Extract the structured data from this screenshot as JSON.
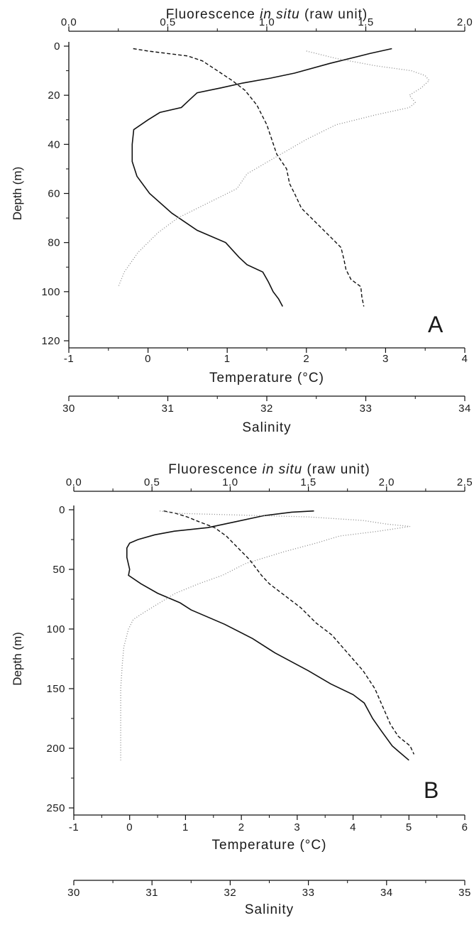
{
  "chart_data": [
    {
      "type": "line",
      "panel_label": "A",
      "top_axis": {
        "title_pre": "Fluorescence ",
        "title_ital": "in situ",
        "title_post": " (raw unit)",
        "range": [
          0.0,
          2.0
        ],
        "ticks": [
          "0.0",
          "0.5",
          "1.0",
          "1.5",
          "2.0"
        ]
      },
      "temperature_axis": {
        "title": "Temperature (°C)",
        "range": [
          -1,
          4
        ],
        "ticks": [
          "-1",
          "0",
          "1",
          "2",
          "3",
          "4"
        ]
      },
      "salinity_axis": {
        "title": "Salinity",
        "range": [
          30,
          34
        ],
        "ticks": [
          "30",
          "31",
          "32",
          "33",
          "34"
        ]
      },
      "depth_axis": {
        "title": "Depth (m)",
        "range": [
          0,
          120
        ],
        "reversed": true,
        "ticks": [
          "0",
          "20",
          "40",
          "60",
          "80",
          "100",
          "120"
        ]
      },
      "series": [
        {
          "style": "solid",
          "axis": "temperature",
          "points": [
            [
              3.08,
              1
            ],
            [
              2.8,
              3
            ],
            [
              2.3,
              7
            ],
            [
              1.85,
              11
            ],
            [
              1.55,
              13
            ],
            [
              1.2,
              15
            ],
            [
              0.92,
              17
            ],
            [
              0.62,
              19
            ],
            [
              0.52,
              22
            ],
            [
              0.42,
              25
            ],
            [
              0.15,
              27
            ],
            [
              0.0,
              30
            ],
            [
              -0.18,
              34
            ],
            [
              -0.2,
              40
            ],
            [
              -0.2,
              47
            ],
            [
              -0.14,
              53
            ],
            [
              0.02,
              60
            ],
            [
              0.3,
              68
            ],
            [
              0.62,
              75
            ],
            [
              0.98,
              80
            ],
            [
              1.15,
              86
            ],
            [
              1.25,
              89
            ],
            [
              1.45,
              92
            ],
            [
              1.52,
              96
            ],
            [
              1.58,
              100
            ],
            [
              1.65,
              103
            ],
            [
              1.7,
              106
            ]
          ]
        },
        {
          "style": "dashed",
          "axis": "salinity",
          "points": [
            [
              30.65,
              1
            ],
            [
              30.8,
              2
            ],
            [
              31.0,
              3
            ],
            [
              31.2,
              4
            ],
            [
              31.35,
              6
            ],
            [
              31.5,
              10
            ],
            [
              31.65,
              14
            ],
            [
              31.78,
              18
            ],
            [
              31.9,
              24
            ],
            [
              32.0,
              32
            ],
            [
              32.05,
              38
            ],
            [
              32.1,
              44
            ],
            [
              32.2,
              50
            ],
            [
              32.23,
              56
            ],
            [
              32.28,
              60
            ],
            [
              32.35,
              66
            ],
            [
              32.5,
              72
            ],
            [
              32.6,
              76
            ],
            [
              32.75,
              82
            ],
            [
              32.78,
              87
            ],
            [
              32.8,
              91
            ],
            [
              32.85,
              95
            ],
            [
              32.95,
              98
            ],
            [
              32.96,
              102
            ],
            [
              32.98,
              106
            ]
          ]
        },
        {
          "style": "dotted",
          "axis": "fluorescence",
          "points": [
            [
              1.2,
              2
            ],
            [
              1.35,
              5
            ],
            [
              1.55,
              8
            ],
            [
              1.73,
              10
            ],
            [
              1.8,
              12
            ],
            [
              1.82,
              14
            ],
            [
              1.78,
              17
            ],
            [
              1.72,
              20
            ],
            [
              1.75,
              23
            ],
            [
              1.72,
              25
            ],
            [
              1.55,
              28
            ],
            [
              1.35,
              32
            ],
            [
              1.2,
              38
            ],
            [
              1.05,
              45
            ],
            [
              0.9,
              52
            ],
            [
              0.85,
              58
            ],
            [
              0.7,
              64
            ],
            [
              0.55,
              70
            ],
            [
              0.45,
              76
            ],
            [
              0.35,
              84
            ],
            [
              0.28,
              92
            ],
            [
              0.25,
              98
            ]
          ]
        }
      ]
    },
    {
      "type": "line",
      "panel_label": "B",
      "top_axis": {
        "title_pre": "Fluorescence ",
        "title_ital": "in situ",
        "title_post": " (raw unit)",
        "range": [
          0.0,
          2.5
        ],
        "ticks": [
          "0.0",
          "0.5",
          "1.0",
          "1.5",
          "2.0",
          "2.5"
        ]
      },
      "temperature_axis": {
        "title": "Temperature (°C)",
        "range": [
          -1,
          6
        ],
        "ticks": [
          "-1",
          "0",
          "1",
          "2",
          "3",
          "4",
          "5",
          "6"
        ]
      },
      "salinity_axis": {
        "title": "Salinity",
        "range": [
          30,
          35
        ],
        "ticks": [
          "30",
          "31",
          "32",
          "33",
          "34",
          "35"
        ]
      },
      "depth_axis": {
        "title": "Depth (m)",
        "range": [
          0,
          250
        ],
        "reversed": true,
        "ticks": [
          "0",
          "50",
          "100",
          "150",
          "200",
          "250"
        ]
      },
      "series": [
        {
          "style": "solid",
          "axis": "temperature",
          "points": [
            [
              3.3,
              1
            ],
            [
              2.9,
              2
            ],
            [
              2.4,
              5
            ],
            [
              1.9,
              10
            ],
            [
              1.4,
              15
            ],
            [
              0.8,
              18
            ],
            [
              0.45,
              21
            ],
            [
              0.15,
              25
            ],
            [
              0.0,
              28
            ],
            [
              -0.05,
              32
            ],
            [
              -0.05,
              40
            ],
            [
              0.0,
              50
            ],
            [
              -0.02,
              55
            ],
            [
              0.2,
              62
            ],
            [
              0.5,
              70
            ],
            [
              0.9,
              78
            ],
            [
              1.1,
              84
            ],
            [
              1.7,
              96
            ],
            [
              2.2,
              108
            ],
            [
              2.6,
              120
            ],
            [
              3.2,
              135
            ],
            [
              3.6,
              146
            ],
            [
              4.0,
              155
            ],
            [
              4.2,
              162
            ],
            [
              4.35,
              175
            ],
            [
              4.5,
              185
            ],
            [
              4.7,
              198
            ],
            [
              4.8,
              202
            ],
            [
              5.0,
              210
            ]
          ]
        },
        {
          "style": "dashed",
          "axis": "salinity",
          "points": [
            [
              31.15,
              1
            ],
            [
              31.3,
              3
            ],
            [
              31.45,
              6
            ],
            [
              31.6,
              10
            ],
            [
              31.8,
              15
            ],
            [
              31.95,
              22
            ],
            [
              32.1,
              32
            ],
            [
              32.25,
              42
            ],
            [
              32.4,
              55
            ],
            [
              32.5,
              62
            ],
            [
              32.7,
              72
            ],
            [
              32.9,
              82
            ],
            [
              33.1,
              95
            ],
            [
              33.3,
              105
            ],
            [
              33.5,
              120
            ],
            [
              33.7,
              135
            ],
            [
              33.85,
              150
            ],
            [
              33.95,
              165
            ],
            [
              34.05,
              180
            ],
            [
              34.15,
              190
            ],
            [
              34.3,
              198
            ],
            [
              34.35,
              205
            ]
          ]
        },
        {
          "style": "dotted",
          "axis": "fluorescence",
          "points": [
            [
              0.55,
              1
            ],
            [
              0.65,
              3
            ],
            [
              1.5,
              6
            ],
            [
              1.85,
              9
            ],
            [
              2.0,
              12
            ],
            [
              2.15,
              14
            ],
            [
              1.95,
              18
            ],
            [
              1.7,
              22
            ],
            [
              1.55,
              28
            ],
            [
              1.35,
              35
            ],
            [
              1.1,
              45
            ],
            [
              0.95,
              55
            ],
            [
              0.8,
              62
            ],
            [
              0.65,
              70
            ],
            [
              0.55,
              78
            ],
            [
              0.45,
              86
            ],
            [
              0.38,
              92
            ],
            [
              0.35,
              100
            ],
            [
              0.32,
              115
            ],
            [
              0.31,
              130
            ],
            [
              0.3,
              150
            ],
            [
              0.3,
              170
            ],
            [
              0.3,
              190
            ],
            [
              0.3,
              210
            ]
          ]
        }
      ]
    }
  ]
}
